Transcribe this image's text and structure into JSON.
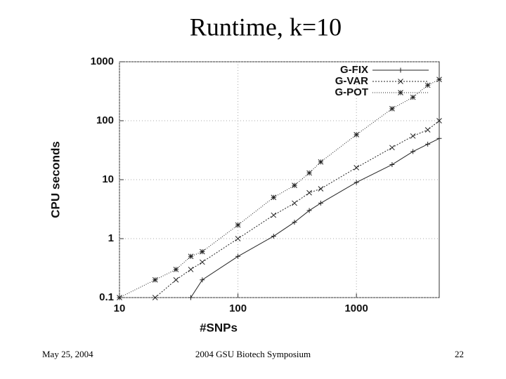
{
  "chart_data": {
    "type": "line",
    "title": "Runtime, k=10",
    "x_label": "#SNPs",
    "y_label": "CPU seconds",
    "x_scale": "log",
    "y_scale": "log",
    "xlim": [
      10,
      5000
    ],
    "ylim": [
      0.1,
      1000
    ],
    "xticks": [
      10,
      100,
      1000
    ],
    "yticks": [
      0.1,
      1,
      10,
      100,
      1000
    ],
    "grid": true,
    "legend": "top-right",
    "x": [
      10,
      20,
      30,
      40,
      50,
      100,
      200,
      300,
      400,
      500,
      1000,
      2000,
      3000,
      4000,
      5000
    ],
    "series": [
      {
        "name": "G-FIX",
        "color": "#222222",
        "marker": "plus",
        "values": [
          null,
          null,
          null,
          0.1,
          0.2,
          0.5,
          1.1,
          1.9,
          3,
          4,
          9,
          18,
          30,
          40,
          50
        ]
      },
      {
        "name": "G-VAR",
        "color": "#222222",
        "marker": "cross",
        "values": [
          null,
          0.1,
          0.2,
          0.3,
          0.4,
          1,
          2.5,
          4,
          6,
          7,
          16,
          35,
          55,
          70,
          100
        ]
      },
      {
        "name": "G-POT",
        "color": "#222222",
        "marker": "star",
        "values": [
          0.1,
          0.2,
          0.3,
          0.5,
          0.6,
          1.7,
          5,
          8,
          13,
          20,
          58,
          160,
          250,
          400,
          500
        ]
      }
    ]
  },
  "footer": {
    "date": "May 25, 2004",
    "event": "2004 GSU Biotech Symposium",
    "page": "22"
  }
}
